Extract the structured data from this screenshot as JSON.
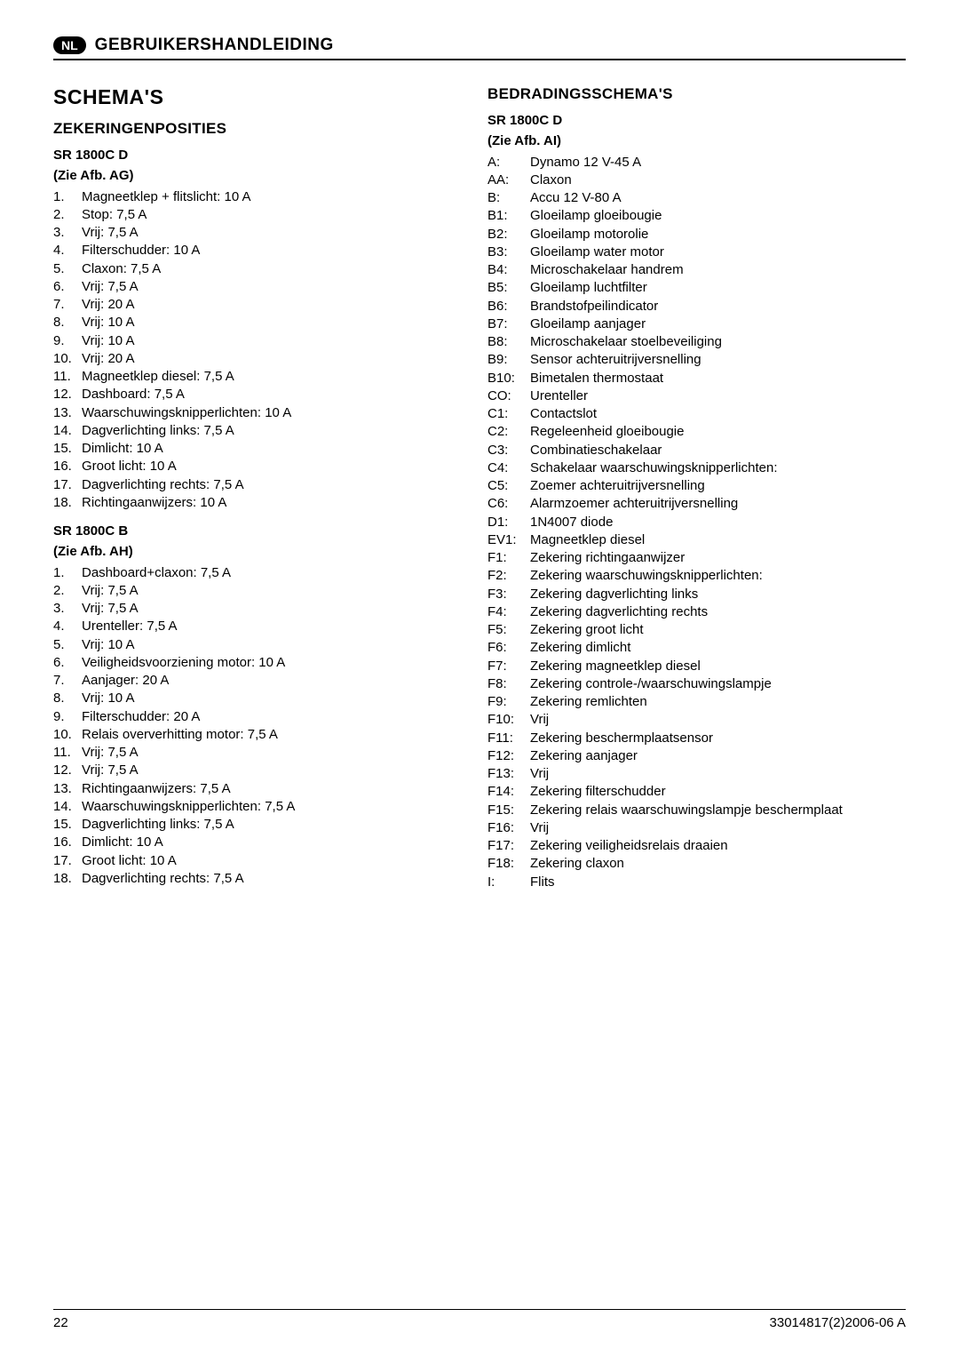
{
  "header": {
    "badge": "NL",
    "title": "GEBRUIKERSHANDLEIDING"
  },
  "mainHeading": "SCHEMA'S",
  "left": {
    "heading": "ZEKERINGENPOSITIES",
    "group1": {
      "model": "SR 1800C D",
      "ref": "(Zie Afb. AG)",
      "items": [
        {
          "k": "1.",
          "v": "Magneetklep + flitslicht: 10 A"
        },
        {
          "k": "2.",
          "v": "Stop: 7,5 A"
        },
        {
          "k": "3.",
          "v": "Vrij: 7,5 A"
        },
        {
          "k": "4.",
          "v": "Filterschudder: 10 A"
        },
        {
          "k": "5.",
          "v": "Claxon: 7,5 A"
        },
        {
          "k": "6.",
          "v": "Vrij: 7,5 A"
        },
        {
          "k": "7.",
          "v": "Vrij: 20 A"
        },
        {
          "k": "8.",
          "v": "Vrij: 10 A"
        },
        {
          "k": "9.",
          "v": "Vrij: 10 A"
        },
        {
          "k": "10.",
          "v": "Vrij: 20 A"
        },
        {
          "k": "11.",
          "v": "Magneetklep diesel: 7,5 A"
        },
        {
          "k": "12.",
          "v": "Dashboard: 7,5 A"
        },
        {
          "k": "13.",
          "v": "Waarschuwingsknipperlichten: 10 A"
        },
        {
          "k": "14.",
          "v": "Dagverlichting links: 7,5 A"
        },
        {
          "k": "15.",
          "v": "Dimlicht: 10 A"
        },
        {
          "k": "16.",
          "v": "Groot licht: 10 A"
        },
        {
          "k": "17.",
          "v": "Dagverlichting rechts: 7,5 A"
        },
        {
          "k": "18.",
          "v": "Richtingaanwijzers: 10 A"
        }
      ]
    },
    "group2": {
      "model": "SR 1800C B",
      "ref": "(Zie Afb. AH)",
      "items": [
        {
          "k": "1.",
          "v": "Dashboard+claxon: 7,5 A"
        },
        {
          "k": "2.",
          "v": "Vrij: 7,5 A"
        },
        {
          "k": "3.",
          "v": "Vrij: 7,5 A"
        },
        {
          "k": "4.",
          "v": "Urenteller: 7,5 A"
        },
        {
          "k": "5.",
          "v": "Vrij: 10 A"
        },
        {
          "k": "6.",
          "v": "Veiligheidsvoorziening motor: 10 A"
        },
        {
          "k": "7.",
          "v": "Aanjager: 20 A"
        },
        {
          "k": "8.",
          "v": "Vrij: 10 A"
        },
        {
          "k": "9.",
          "v": "Filterschudder: 20 A"
        },
        {
          "k": "10.",
          "v": "Relais oververhitting motor: 7,5 A"
        },
        {
          "k": "11.",
          "v": "Vrij: 7,5 A"
        },
        {
          "k": "12.",
          "v": "Vrij: 7,5 A"
        },
        {
          "k": "13.",
          "v": "Richtingaanwijzers: 7,5 A"
        },
        {
          "k": "14.",
          "v": "Waarschuwingsknipperlichten: 7,5 A"
        },
        {
          "k": "15.",
          "v": "Dagverlichting links: 7,5 A"
        },
        {
          "k": "16.",
          "v": "Dimlicht: 10 A"
        },
        {
          "k": "17.",
          "v": "Groot licht: 10 A"
        },
        {
          "k": "18.",
          "v": "Dagverlichting rechts: 7,5 A"
        }
      ]
    }
  },
  "right": {
    "heading": "BEDRADINGSSCHEMA'S",
    "group": {
      "model": "SR 1800C D",
      "ref": "(Zie Afb. AI)",
      "items": [
        {
          "k": "A:",
          "v": "Dynamo 12 V-45 A"
        },
        {
          "k": "AA:",
          "v": "Claxon"
        },
        {
          "k": "B:",
          "v": "Accu 12 V-80 A"
        },
        {
          "k": "B1:",
          "v": "Gloeilamp gloeibougie"
        },
        {
          "k": "B2:",
          "v": "Gloeilamp motorolie"
        },
        {
          "k": "B3:",
          "v": "Gloeilamp water motor"
        },
        {
          "k": "B4:",
          "v": "Microschakelaar handrem"
        },
        {
          "k": "B5:",
          "v": "Gloeilamp luchtfilter"
        },
        {
          "k": "B6:",
          "v": "Brandstofpeilindicator"
        },
        {
          "k": "B7:",
          "v": "Gloeilamp aanjager"
        },
        {
          "k": "B8:",
          "v": "Microschakelaar stoelbeveiliging"
        },
        {
          "k": "B9:",
          "v": "Sensor achteruitrijversnelling"
        },
        {
          "k": "B10:",
          "v": "Bimetalen thermostaat"
        },
        {
          "k": "CO:",
          "v": "Urenteller"
        },
        {
          "k": "C1:",
          "v": "Contactslot"
        },
        {
          "k": "C2:",
          "v": "Regeleenheid gloeibougie"
        },
        {
          "k": "C3:",
          "v": "Combinatieschakelaar"
        },
        {
          "k": "C4:",
          "v": "Schakelaar waarschuwingsknipperlichten:"
        },
        {
          "k": "C5:",
          "v": "Zoemer achteruitrijversnelling"
        },
        {
          "k": "C6:",
          "v": "Alarmzoemer achteruitrijversnelling"
        },
        {
          "k": "D1:",
          "v": "1N4007 diode"
        },
        {
          "k": "EV1:",
          "v": "Magneetklep diesel"
        },
        {
          "k": "F1:",
          "v": "Zekering richtingaanwijzer"
        },
        {
          "k": "F2:",
          "v": "Zekering waarschuwingsknipperlichten:"
        },
        {
          "k": "F3:",
          "v": "Zekering dagverlichting links"
        },
        {
          "k": "F4:",
          "v": "Zekering dagverlichting rechts"
        },
        {
          "k": "F5:",
          "v": "Zekering groot licht"
        },
        {
          "k": "F6:",
          "v": "Zekering dimlicht"
        },
        {
          "k": "F7:",
          "v": "Zekering magneetklep diesel"
        },
        {
          "k": "F8:",
          "v": "Zekering controle-/waarschuwingslampje"
        },
        {
          "k": "F9:",
          "v": "Zekering remlichten"
        },
        {
          "k": "F10:",
          "v": "Vrij"
        },
        {
          "k": "F11:",
          "v": "Zekering beschermplaatsensor"
        },
        {
          "k": "F12:",
          "v": "Zekering aanjager"
        },
        {
          "k": "F13:",
          "v": "Vrij"
        },
        {
          "k": "F14:",
          "v": "Zekering filterschudder"
        },
        {
          "k": "F15:",
          "v": "Zekering relais waarschuwingslampje beschermplaat"
        },
        {
          "k": "F16:",
          "v": "Vrij"
        },
        {
          "k": "F17:",
          "v": "Zekering veiligheidsrelais draaien"
        },
        {
          "k": "F18:",
          "v": "Zekering claxon"
        },
        {
          "k": "I:",
          "v": "Flits"
        }
      ]
    }
  },
  "footer": {
    "pageNumber": "22",
    "docRef": "33014817(2)2006-06 A"
  }
}
